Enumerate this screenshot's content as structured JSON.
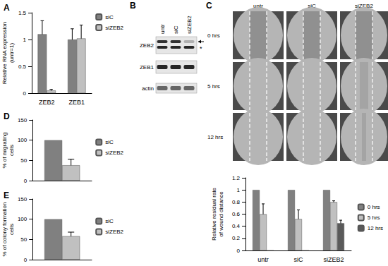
{
  "chart_data": [
    {
      "panel": "A",
      "type": "bar",
      "categories": [
        "ZEB2",
        "ZEB1"
      ],
      "series": [
        {
          "name": "siC",
          "color": "#808080",
          "values": [
            1.1,
            1.0
          ],
          "errors": [
            0.25,
            0.2
          ]
        },
        {
          "name": "siZEB2",
          "color": "#c0c0c0",
          "values": [
            0.05,
            1.02
          ],
          "errors": [
            0.02,
            0.25
          ]
        }
      ],
      "y_label": "Relative RNA expression\n(untr=1)",
      "ylim": [
        0,
        1.5
      ],
      "yticks": [
        0,
        0.5,
        1,
        1.5
      ],
      "grid": false,
      "legend": "top-right"
    },
    {
      "panel": "D",
      "type": "bar",
      "categories": [
        null
      ],
      "series": [
        {
          "name": "siC",
          "color": "#808080",
          "values": [
            100
          ],
          "errors": [
            null
          ]
        },
        {
          "name": "siZEB2",
          "color": "#c0c0c0",
          "values": [
            38
          ],
          "errors": [
            15
          ]
        }
      ],
      "y_label": "% of migrating\ncells",
      "ylim": [
        0,
        150
      ],
      "yticks": [
        0,
        50,
        100,
        150
      ],
      "grid": false,
      "legend": "right"
    },
    {
      "panel": "E",
      "type": "bar",
      "categories": [
        null
      ],
      "series": [
        {
          "name": "siC",
          "color": "#808080",
          "values": [
            100
          ],
          "errors": [
            null
          ]
        },
        {
          "name": "siZEB2",
          "color": "#c0c0c0",
          "values": [
            58
          ],
          "errors": [
            10
          ]
        }
      ],
      "y_label": "% of colony formation\ncells",
      "ylim": [
        0,
        150
      ],
      "yticks": [
        0,
        50,
        100,
        150
      ],
      "grid": false,
      "legend": "right"
    },
    {
      "type": "bar",
      "categories": [
        "untr",
        "siC",
        "siZEB2"
      ],
      "series": [
        {
          "name": "0 hrs",
          "color": "#808080",
          "values": [
            1,
            1,
            1
          ],
          "errors": [
            null,
            null,
            null
          ]
        },
        {
          "name": "5 hrs",
          "color": "#c0c0c0",
          "values": [
            0.6,
            0.52,
            0.8
          ],
          "errors": [
            0.17,
            0.15,
            0.02
          ]
        },
        {
          "name": "12 hrs",
          "color": "#5a5a5a",
          "values": [
            0,
            0,
            0.45
          ],
          "errors": [
            null,
            null,
            0.05
          ]
        }
      ],
      "y_label": "Relative residual rate\nof wound distance",
      "ylim": [
        0,
        1.2
      ],
      "yticks": [
        0,
        0.2,
        0.4,
        0.6,
        0.8,
        1,
        1.2
      ],
      "grid": false,
      "legend": "right"
    }
  ],
  "blot": {
    "panel": "B",
    "lanes": [
      "untr",
      "siC",
      "siZEB2"
    ],
    "rows": [
      "ZEB2",
      "ZEB1",
      "actin"
    ],
    "band_mark": "*"
  },
  "micrographs": {
    "panel": "C",
    "columns": [
      "untr",
      "siC",
      "siZEB2"
    ],
    "rows": [
      "0 hrs",
      "5 hrs",
      "12 hrs"
    ]
  }
}
